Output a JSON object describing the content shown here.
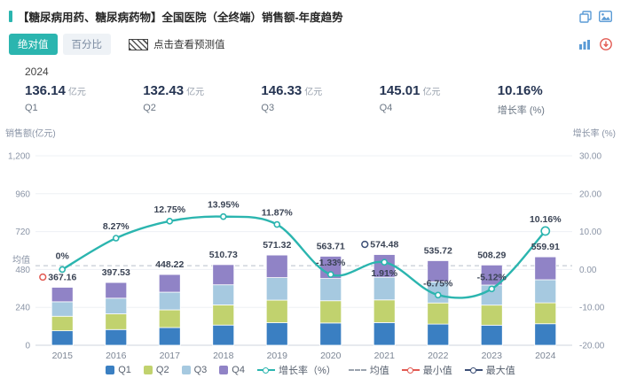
{
  "header": {
    "title": "【糖尿病用药、糖尿病药物】全国医院（全终端）销售额-年度趋势"
  },
  "icons": {
    "top": [
      "copy-icon",
      "image-icon"
    ],
    "toolbar": [
      "bar-chart-icon",
      "export-icon"
    ]
  },
  "toolbar": {
    "absolute_label": "绝对值",
    "percent_label": "百分比",
    "forecast_label": "点击查看预测值"
  },
  "year_label": "2024",
  "stats": [
    {
      "value": "136.14",
      "unit": "亿元",
      "label": "Q1"
    },
    {
      "value": "132.43",
      "unit": "亿元",
      "label": "Q2"
    },
    {
      "value": "146.33",
      "unit": "亿元",
      "label": "Q3"
    },
    {
      "value": "145.01",
      "unit": "亿元",
      "label": "Q4"
    },
    {
      "value": "10.16%",
      "unit": "",
      "label": "增长率 (%)"
    }
  ],
  "chart_data": {
    "type": "bar",
    "stacked": true,
    "title": "【糖尿病用药、糖尿病药物】全国医院（全终端）销售额-年度趋势",
    "categories": [
      "2015",
      "2016",
      "2017",
      "2018",
      "2019",
      "2020",
      "2021",
      "2022",
      "2023",
      "2024"
    ],
    "series": [
      {
        "name": "Q1",
        "color": "#3a7fc2",
        "values": [
          91.79,
          99.38,
          112.06,
          127.68,
          142.83,
          140.93,
          143.62,
          133.93,
          127.07,
          136.14
        ]
      },
      {
        "name": "Q2",
        "color": "#c1d26e",
        "values": [
          91.79,
          99.38,
          112.06,
          127.68,
          142.83,
          140.93,
          143.62,
          133.93,
          127.07,
          132.43
        ]
      },
      {
        "name": "Q3",
        "color": "#a6c9e0",
        "values": [
          91.79,
          99.38,
          112.06,
          127.68,
          142.83,
          140.93,
          143.62,
          133.93,
          127.07,
          146.33
        ]
      },
      {
        "name": "Q4",
        "color": "#9083c6",
        "values": [
          91.79,
          99.39,
          112.04,
          127.69,
          142.83,
          140.92,
          143.62,
          133.93,
          127.08,
          145.01
        ]
      }
    ],
    "totals": [
      367.16,
      397.53,
      448.22,
      510.73,
      571.32,
      563.71,
      574.48,
      535.72,
      508.29,
      559.91
    ],
    "growth_series": {
      "name": "增长率（%）",
      "color": "#2bb5af",
      "values": [
        0,
        8.27,
        12.75,
        13.95,
        11.87,
        -1.33,
        1.91,
        -6.75,
        -5.12,
        10.16
      ],
      "labels": [
        "0%",
        "8.27%",
        "12.75%",
        "13.95%",
        "11.87%",
        "-1.33%",
        "1.91%",
        "-6.75%",
        "-5.12%",
        "10.16%"
      ]
    },
    "left_axis": {
      "title": "销售额(亿元)",
      "min": 0,
      "max": 1200,
      "ticks": [
        0,
        240,
        480,
        720,
        960,
        1200
      ],
      "tick_labels": [
        "0",
        "240",
        "480",
        "720",
        "960",
        "1,200"
      ]
    },
    "right_axis": {
      "title": "增长率  (%)",
      "min": -20,
      "max": 30,
      "ticks": [
        -20,
        -10,
        0,
        10,
        20,
        30
      ],
      "tick_labels": [
        "-20.00",
        "-10.00",
        "0.00",
        "10.00",
        "20.00",
        "30.00"
      ]
    },
    "mean": {
      "label": "均值",
      "value": 503.71
    },
    "min_point": {
      "category": "2015",
      "value": 367.16,
      "color": "#e25a52"
    },
    "max_point": {
      "category": "2021",
      "value": 574.48,
      "color": "#3c4f76"
    }
  },
  "legend": {
    "items": [
      {
        "label": "Q1"
      },
      {
        "label": "Q2"
      },
      {
        "label": "Q3"
      },
      {
        "label": "Q4"
      },
      {
        "label": "增长率（%）"
      },
      {
        "label": "均值"
      },
      {
        "label": "最小值"
      },
      {
        "label": "最大值"
      }
    ]
  }
}
